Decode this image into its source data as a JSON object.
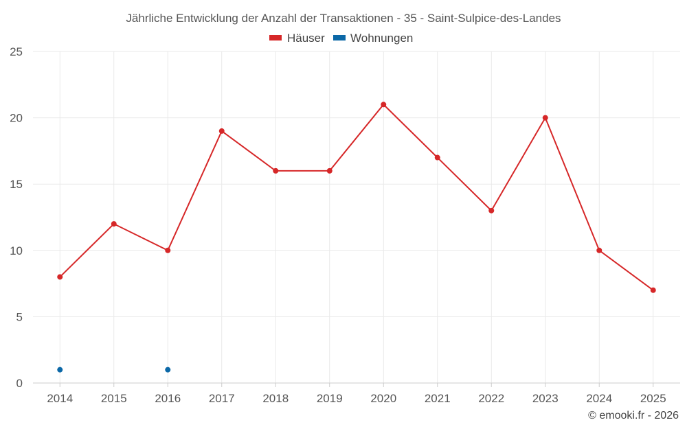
{
  "chart_data": {
    "type": "line",
    "title": "Jährliche Entwicklung der Anzahl der Transaktionen - 35 - Saint-Sulpice-des-Landes",
    "categories": [
      "2014",
      "2015",
      "2016",
      "2017",
      "2018",
      "2019",
      "2020",
      "2021",
      "2022",
      "2023",
      "2024",
      "2025"
    ],
    "series": [
      {
        "name": "Häuser",
        "color": "#d62728",
        "values": [
          8,
          12,
          10,
          19,
          16,
          16,
          21,
          17,
          13,
          20,
          10,
          7
        ]
      },
      {
        "name": "Wohnungen",
        "color": "#0b68a7",
        "values": [
          1,
          null,
          1,
          null,
          null,
          null,
          null,
          null,
          null,
          null,
          null,
          null
        ]
      }
    ],
    "ylim": [
      0,
      25
    ],
    "yticks": [
      0,
      5,
      10,
      15,
      20,
      25
    ],
    "xlabel": "",
    "ylabel": "",
    "grid": true,
    "legend": "top-center"
  },
  "credit": "© emooki.fr - 2026"
}
